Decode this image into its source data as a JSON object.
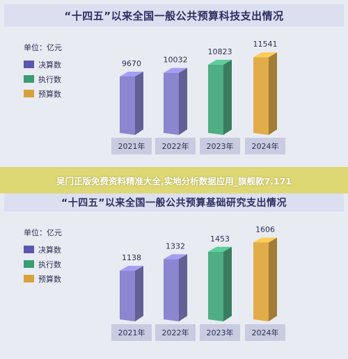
{
  "legend": {
    "unit": "单位：亿元",
    "items": [
      {
        "label": "决算数",
        "color": "#5b57b0"
      },
      {
        "label": "执行数",
        "color": "#3a9c74"
      },
      {
        "label": "预算数",
        "color": "#d7a23b"
      }
    ]
  },
  "banner": "吴门正版免费资料精准大全,实地分析数据应用_旗舰款7.171",
  "chart_data": [
    {
      "type": "bar",
      "title": "“十四五”以来全国一般公共预算科技支出情况",
      "categories": [
        "2021年",
        "2022年",
        "2023年",
        "2024年"
      ],
      "values": [
        9670,
        10032,
        10823,
        11541
      ],
      "labels": [
        "9670",
        "10032",
        "10823",
        "11541"
      ],
      "kinds": [
        "决算数",
        "决算数",
        "执行数",
        "预算数"
      ],
      "colors": [
        "#8a86d0",
        "#8a86d0",
        "#4fae84",
        "#e0ad4a"
      ],
      "ylabel": "单位：亿元",
      "ylim": [
        4000,
        12500
      ]
    },
    {
      "type": "bar",
      "title": "“十四五”以来全国一般公共预算基础研究支出情况",
      "categories": [
        "2021年",
        "2022年",
        "2023年",
        "2024年"
      ],
      "values": [
        1138,
        1332,
        1453,
        1606
      ],
      "labels": [
        "1138",
        "1332",
        "1453",
        "1606"
      ],
      "kinds": [
        "决算数",
        "决算数",
        "执行数",
        "预算数"
      ],
      "colors": [
        "#8a86d0",
        "#8a86d0",
        "#4fae84",
        "#e0ad4a"
      ],
      "ylabel": "单位：亿元",
      "ylim": [
        300,
        1750
      ]
    }
  ]
}
